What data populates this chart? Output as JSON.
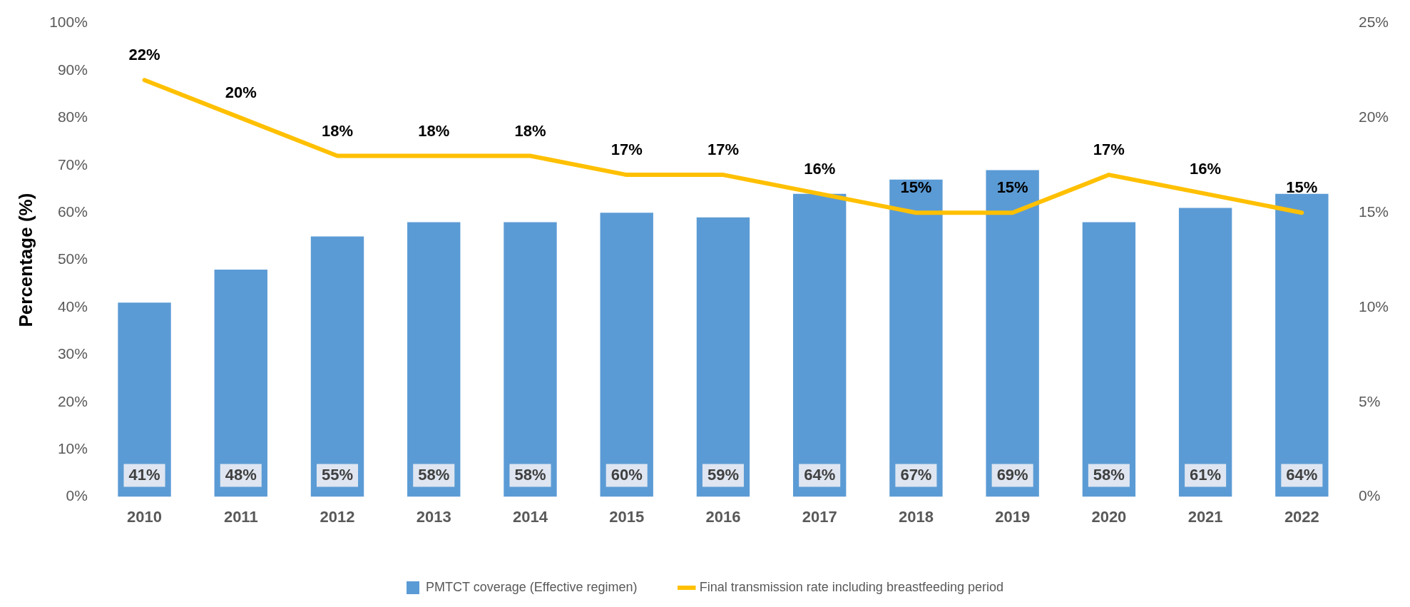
{
  "chart_data": {
    "type": "bar",
    "ylabel": "Percentage (%)",
    "categories": [
      "2010",
      "2011",
      "2012",
      "2013",
      "2014",
      "2015",
      "2016",
      "2017",
      "2018",
      "2019",
      "2020",
      "2021",
      "2022"
    ],
    "series": [
      {
        "name": "PMTCT coverage (Effective regimen)",
        "color": "#5b9bd5",
        "values": [
          41,
          48,
          55,
          58,
          58,
          60,
          59,
          64,
          67,
          69,
          58,
          61,
          64
        ],
        "value_labels": [
          "41%",
          "48%",
          "55%",
          "58%",
          "58%",
          "60%",
          "59%",
          "64%",
          "67%",
          "69%",
          "58%",
          "61%",
          "64%"
        ]
      },
      {
        "name": "Final transmission rate including breastfeeding period",
        "type": "line",
        "axis": "y2",
        "color": "#ffc000",
        "values": [
          22,
          20,
          18,
          18,
          18,
          17,
          17,
          16,
          15,
          15,
          17,
          16,
          15
        ],
        "value_labels": [
          "22%",
          "20%",
          "18%",
          "18%",
          "18%",
          "17%",
          "17%",
          "16%",
          "15%",
          "15%",
          "17%",
          "16%",
          "15%"
        ]
      }
    ],
    "ylim": [
      0,
      100
    ],
    "yticks": [
      {
        "value": 0,
        "label": "0%"
      },
      {
        "value": 10,
        "label": "10%"
      },
      {
        "value": 20,
        "label": "20%"
      },
      {
        "value": 30,
        "label": "30%"
      },
      {
        "value": 40,
        "label": "40%"
      },
      {
        "value": 50,
        "label": "50%"
      },
      {
        "value": 60,
        "label": "60%"
      },
      {
        "value": 70,
        "label": "70%"
      },
      {
        "value": 80,
        "label": "80%"
      },
      {
        "value": 90,
        "label": "90%"
      },
      {
        "value": 100,
        "label": "100%"
      }
    ],
    "y2lim": [
      0,
      25
    ],
    "y2ticks": [
      {
        "value": 0,
        "label": "0%"
      },
      {
        "value": 5,
        "label": "5%"
      },
      {
        "value": 10,
        "label": "10%"
      },
      {
        "value": 15,
        "label": "15%"
      },
      {
        "value": 20,
        "label": "20%"
      },
      {
        "value": 25,
        "label": "25%"
      }
    ],
    "grid": false,
    "legend": "bottom",
    "marker": "none",
    "line_style": "solid"
  }
}
